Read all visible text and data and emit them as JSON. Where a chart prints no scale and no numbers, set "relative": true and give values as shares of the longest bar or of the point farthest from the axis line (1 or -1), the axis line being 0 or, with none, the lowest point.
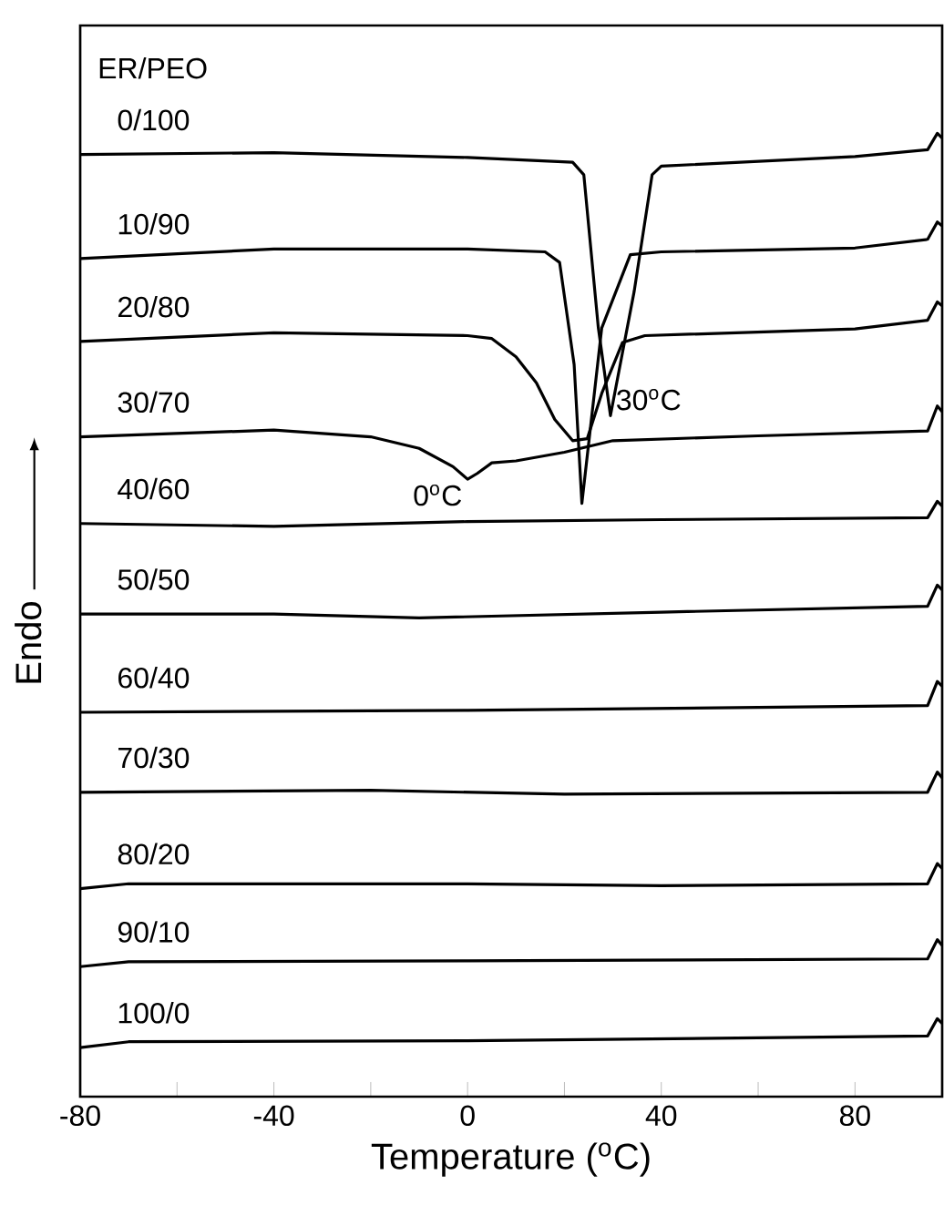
{
  "chart_data": {
    "type": "line",
    "relative": true,
    "legend_title": "ER/PEO",
    "xlabel": "Temperature ($^{o}$C)",
    "ylabel": "Endo",
    "xlim": [
      -80,
      98
    ],
    "xticks": [
      -80,
      {
        "value": -60,
        "label": null
      },
      -40,
      {
        "value": -20,
        "label": null
      },
      0,
      {
        "value": 20,
        "label": null
      },
      40,
      {
        "value": 60,
        "label": null
      },
      80
    ],
    "series": [
      {
        "name": "0/100",
        "color": "#000000",
        "x": [
          -80,
          -40,
          0,
          21.7,
          24,
          27,
          29.5,
          34.4,
          38.1,
          40,
          80,
          95,
          97,
          98
        ],
        "values": [
          0.978,
          0.98,
          0.975,
          0.97,
          0.957,
          0.798,
          0.707,
          0.836,
          0.957,
          0.966,
          0.976,
          0.983,
          1.0,
          0.995
        ]
      },
      {
        "name": "10/90",
        "color": "#000000",
        "x": [
          -80,
          -40,
          0,
          16,
          19,
          22,
          23.6,
          27.7,
          33.6,
          40,
          80,
          95,
          97,
          98
        ],
        "values": [
          0.87,
          0.88,
          0.88,
          0.877,
          0.866,
          0.76,
          0.616,
          0.798,
          0.874,
          0.877,
          0.881,
          0.89,
          0.908,
          0.904
        ]
      },
      {
        "name": "20/80",
        "color": "#000000",
        "x": [
          -80,
          -40,
          0,
          5,
          10,
          14.2,
          18,
          21.7,
          24.7,
          27.7,
          32,
          36.6,
          80,
          95,
          97,
          98
        ],
        "values": [
          0.784,
          0.793,
          0.79,
          0.787,
          0.768,
          0.741,
          0.703,
          0.681,
          0.683,
          0.73,
          0.783,
          0.79,
          0.797,
          0.806,
          0.825,
          0.821
        ]
      },
      {
        "name": "30/70",
        "color": "#000000",
        "x": [
          -80,
          -40,
          -20,
          -10,
          -3,
          0,
          2,
          5,
          10,
          20,
          30,
          60,
          95,
          97,
          98
        ],
        "values": [
          0.685,
          0.692,
          0.685,
          0.673,
          0.654,
          0.641,
          0.647,
          0.658,
          0.66,
          0.669,
          0.681,
          0.686,
          0.691,
          0.717,
          0.711
        ]
      },
      {
        "name": "40/60",
        "color": "#000000",
        "x": [
          -80,
          -40,
          0,
          40,
          95,
          97,
          98
        ],
        "values": [
          0.595,
          0.592,
          0.597,
          0.599,
          0.601,
          0.618,
          0.613
        ]
      },
      {
        "name": "50/50",
        "color": "#000000",
        "x": [
          -80,
          -40,
          -10,
          40,
          95,
          97,
          98
        ],
        "values": [
          0.501,
          0.501,
          0.497,
          0.503,
          0.509,
          0.531,
          0.526
        ]
      },
      {
        "name": "60/40",
        "color": "#000000",
        "x": [
          -80,
          0,
          95,
          97,
          98
        ],
        "values": [
          0.399,
          0.401,
          0.406,
          0.431,
          0.426
        ]
      },
      {
        "name": "70/30",
        "color": "#000000",
        "x": [
          -80,
          -20,
          20,
          95,
          97,
          98
        ],
        "values": [
          0.316,
          0.318,
          0.314,
          0.316,
          0.337,
          0.331
        ]
      },
      {
        "name": "80/20",
        "color": "#000000",
        "x": [
          -80,
          -70,
          0,
          40,
          95,
          97,
          98
        ],
        "values": [
          0.216,
          0.221,
          0.221,
          0.219,
          0.221,
          0.242,
          0.237
        ]
      },
      {
        "name": "90/10",
        "color": "#000000",
        "x": [
          -80,
          -70,
          0,
          95,
          97,
          98
        ],
        "values": [
          0.135,
          0.14,
          0.141,
          0.143,
          0.163,
          0.157
        ]
      },
      {
        "name": "100/0",
        "color": "#000000",
        "x": [
          -80,
          -70,
          0,
          95,
          97,
          98
        ],
        "values": [
          0.051,
          0.057,
          0.058,
          0.063,
          0.081,
          0.076
        ]
      }
    ],
    "annotations": [
      {
        "text": "0$^{o}$C",
        "x": 0,
        "y": 0.641
      },
      {
        "text": "30$^{o}$C",
        "x": 29.5,
        "y": 0.707
      }
    ]
  }
}
